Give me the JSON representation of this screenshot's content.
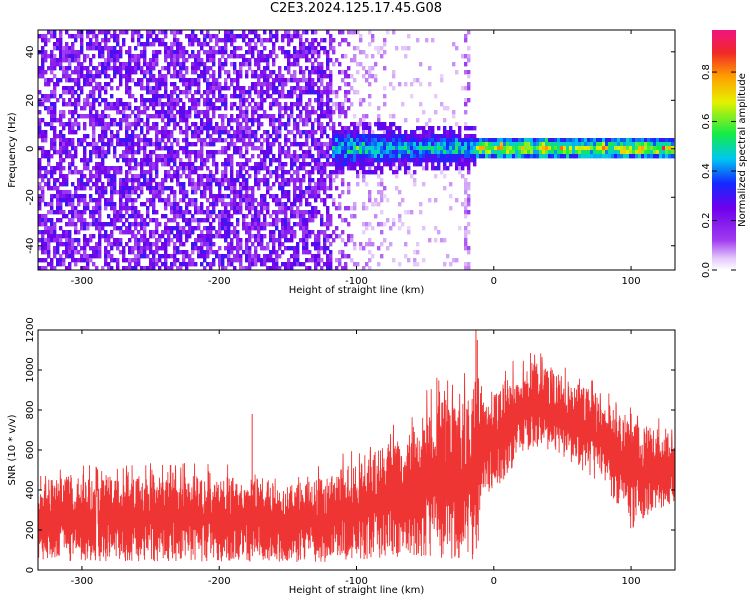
{
  "title": "C2E3.2024.125.17.45.G08",
  "chart_data": [
    {
      "type": "heatmap",
      "xlabel": "Height of straight line (km)",
      "ylabel": "Frequency (Hz)",
      "xlim": [
        -332,
        132
      ],
      "ylim": [
        -50,
        49
      ],
      "xticks": [
        -300,
        -200,
        -100,
        0,
        100
      ],
      "yticks": [
        -40,
        -20,
        0,
        20,
        40
      ],
      "colorbar": {
        "label": "Normalized spectral amplitude",
        "range": [
          0,
          0.97
        ],
        "ticks": [
          0.0,
          0.2,
          0.4,
          0.6,
          0.8
        ],
        "colormap": "rainbow (white-purple-blue-cyan-green-yellow-orange-red-magenta)"
      },
      "grid": false
    },
    {
      "type": "line",
      "series": [
        {
          "color": "#ef3434"
        }
      ],
      "xlabel": "Height of straight line (km)",
      "ylabel": "SNR (10 * v/v)",
      "xlim": [
        -332,
        132
      ],
      "ylim": [
        0,
        1200
      ],
      "xticks": [
        -300,
        -200,
        -100,
        0,
        100
      ],
      "yticks": [
        0,
        200,
        400,
        600,
        800,
        1000,
        1200
      ],
      "envelope": {
        "x": [
          -332,
          -300,
          -250,
          -200,
          -170,
          -150,
          -120,
          -100,
          -80,
          -60,
          -40,
          -25,
          -15,
          -12,
          -10,
          0,
          10,
          20,
          30,
          40,
          60,
          80,
          90,
          95,
          100,
          110,
          120,
          132
        ],
        "low": [
          50,
          40,
          40,
          40,
          40,
          40,
          40,
          50,
          60,
          70,
          60,
          40,
          30,
          20,
          320,
          380,
          480,
          560,
          620,
          600,
          520,
          420,
          330,
          280,
          200,
          260,
          300,
          320
        ],
        "high": [
          450,
          460,
          480,
          470,
          480,
          420,
          470,
          560,
          620,
          720,
          860,
          860,
          900,
          1200,
          900,
          880,
          960,
          1000,
          1040,
          1000,
          940,
          860,
          820,
          780,
          760,
          720,
          700,
          650
        ]
      }
    }
  ]
}
